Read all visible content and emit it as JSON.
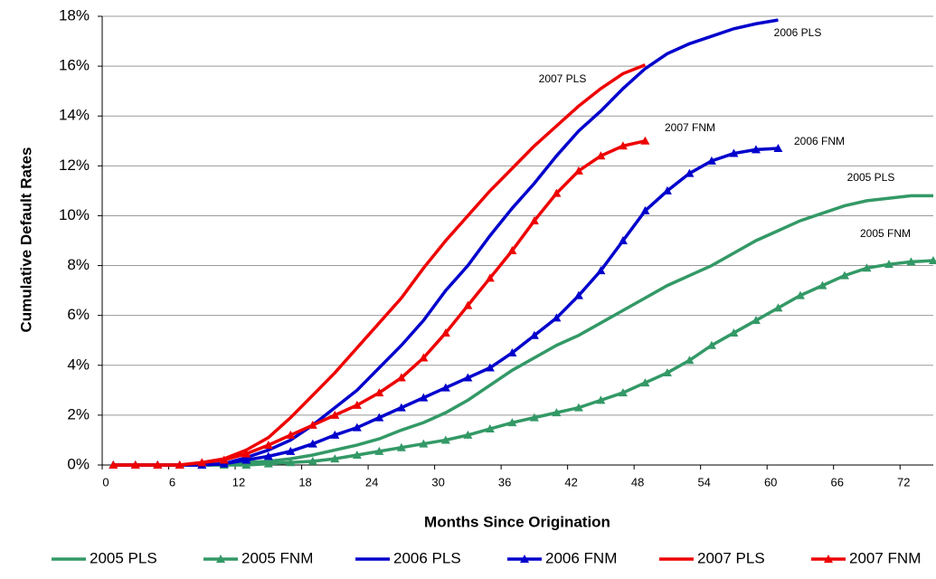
{
  "chart_data": {
    "type": "line",
    "x_label": "Months Since Origination",
    "y_label": "Cumulative Default Rates",
    "x": [
      1,
      3,
      5,
      7,
      9,
      11,
      13,
      15,
      17,
      19,
      21,
      23,
      25,
      27,
      29,
      31,
      33,
      35,
      37,
      39,
      41,
      43,
      45,
      47,
      49,
      51,
      53,
      55,
      57,
      59,
      61,
      63,
      65,
      67,
      69,
      71,
      73,
      75
    ],
    "xlim": [
      0,
      75
    ],
    "xticks": [
      0,
      6,
      12,
      18,
      24,
      30,
      36,
      42,
      48,
      54,
      60,
      66,
      72
    ],
    "ylim": [
      0,
      18
    ],
    "yticks": [
      {
        "value": 0,
        "label": "0%"
      },
      {
        "value": 2,
        "label": "2%"
      },
      {
        "value": 4,
        "label": "4%"
      },
      {
        "value": 6,
        "label": "6%"
      },
      {
        "value": 8,
        "label": "8%"
      },
      {
        "value": 10,
        "label": "10%"
      },
      {
        "value": 12,
        "label": "12%"
      },
      {
        "value": 14,
        "label": "14%"
      },
      {
        "value": 16,
        "label": "16%"
      },
      {
        "value": 18,
        "label": "18%"
      }
    ],
    "grid": true,
    "legend": "bottom",
    "series": [
      {
        "name": "2005 PLS",
        "color": "#339966",
        "marker": "none",
        "values": [
          0,
          0,
          0,
          0,
          0,
          0,
          0.1,
          0.15,
          0.25,
          0.4,
          0.6,
          0.8,
          1.05,
          1.4,
          1.7,
          2.1,
          2.6,
          3.2,
          3.8,
          4.3,
          4.8,
          5.2,
          5.7,
          6.2,
          6.7,
          7.2,
          7.6,
          8.0,
          8.5,
          9.0,
          9.4,
          9.8,
          10.1,
          10.4,
          10.6,
          10.7,
          10.8,
          10.8
        ]
      },
      {
        "name": "2005 FNM",
        "color": "#339966",
        "marker": "triangle",
        "values": [
          0,
          0,
          0,
          0,
          0,
          0,
          0,
          0.05,
          0.1,
          0.15,
          0.25,
          0.4,
          0.55,
          0.7,
          0.85,
          1.0,
          1.2,
          1.45,
          1.7,
          1.9,
          2.1,
          2.3,
          2.6,
          2.9,
          3.3,
          3.7,
          4.2,
          4.8,
          5.3,
          5.8,
          6.3,
          6.8,
          7.2,
          7.6,
          7.9,
          8.05,
          8.15,
          8.2
        ]
      },
      {
        "name": "2006 PLS",
        "color": "#0000cc",
        "marker": "none",
        "values": [
          0,
          0,
          0,
          0,
          0,
          0.05,
          0.3,
          0.6,
          1.0,
          1.6,
          2.3,
          3.0,
          3.9,
          4.8,
          5.8,
          7.0,
          8.0,
          9.2,
          10.3,
          11.3,
          12.4,
          13.4,
          14.2,
          15.1,
          15.9,
          16.5,
          16.9,
          17.2,
          17.5,
          17.7,
          17.85,
          null,
          null,
          null,
          null,
          null,
          null,
          null
        ]
      },
      {
        "name": "2006 FNM",
        "color": "#0000cc",
        "marker": "triangle",
        "values": [
          0,
          0,
          0,
          0,
          0,
          0.05,
          0.2,
          0.35,
          0.55,
          0.85,
          1.2,
          1.5,
          1.9,
          2.3,
          2.7,
          3.1,
          3.5,
          3.9,
          4.5,
          5.2,
          5.9,
          6.8,
          7.8,
          9.0,
          10.2,
          11.0,
          11.7,
          12.2,
          12.5,
          12.65,
          12.7,
          null,
          null,
          null,
          null,
          null,
          null,
          null
        ]
      },
      {
        "name": "2007 PLS",
        "color": "#ee0000",
        "marker": "none",
        "values": [
          0,
          0,
          0,
          0,
          0.1,
          0.25,
          0.6,
          1.1,
          1.9,
          2.8,
          3.7,
          4.7,
          5.7,
          6.7,
          7.9,
          9.0,
          10.0,
          11.0,
          11.9,
          12.8,
          13.6,
          14.4,
          15.1,
          15.7,
          16.05,
          null,
          null,
          null,
          null,
          null,
          null,
          null,
          null,
          null,
          null,
          null,
          null,
          null
        ]
      },
      {
        "name": "2007 FNM",
        "color": "#ee0000",
        "marker": "triangle",
        "values": [
          0,
          0,
          0,
          0,
          0.1,
          0.2,
          0.45,
          0.8,
          1.2,
          1.6,
          2.0,
          2.4,
          2.9,
          3.5,
          4.3,
          5.3,
          6.4,
          7.5,
          8.6,
          9.8,
          10.9,
          11.8,
          12.4,
          12.8,
          13.0,
          null,
          null,
          null,
          null,
          null,
          null,
          null,
          null,
          null,
          null,
          null,
          null,
          null
        ]
      }
    ],
    "annotations": [
      "2006 PLS",
      "2007 PLS",
      "2007 FNM",
      "2006 FNM",
      "2005 PLS",
      "2005 FNM"
    ]
  }
}
